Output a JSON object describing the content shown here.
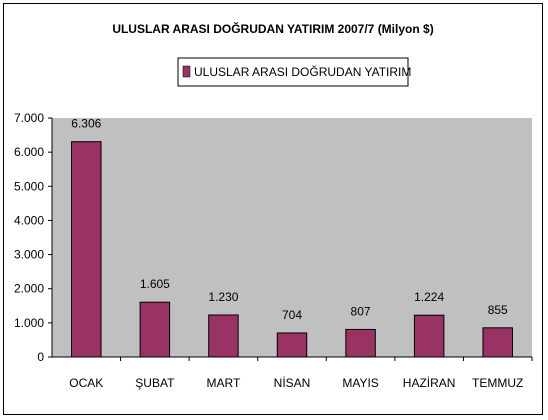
{
  "chart_data": {
    "type": "bar",
    "title": "ULUSLAR ARASI DOĞRUDAN YATIRIM 2007/7 (Milyon $)",
    "categories": [
      "OCAK",
      "ŞUBAT",
      "MART",
      "NİSAN",
      "MAYIS",
      "HAZİRAN",
      "TEMMUZ"
    ],
    "series": [
      {
        "name": "ULUSLAR ARASI DOĞRUDAN YATIRIM",
        "values": [
          6306,
          1605,
          1230,
          704,
          807,
          1224,
          855
        ],
        "value_labels": [
          "6.306",
          "1.605",
          "1.230",
          "704",
          "807",
          "1.224",
          "855"
        ],
        "color": "#993366"
      }
    ],
    "y_ticks": [
      0,
      1000,
      2000,
      3000,
      4000,
      5000,
      6000,
      7000
    ],
    "y_tick_labels": [
      "0",
      "1.000",
      "2.000",
      "3.000",
      "4.000",
      "5.000",
      "6.000",
      "7.000"
    ],
    "ylim": [
      0,
      7000
    ],
    "xlabel": "",
    "ylabel": "",
    "grid": false,
    "legend_position": "top",
    "plot_background": "#c0c0c0"
  }
}
